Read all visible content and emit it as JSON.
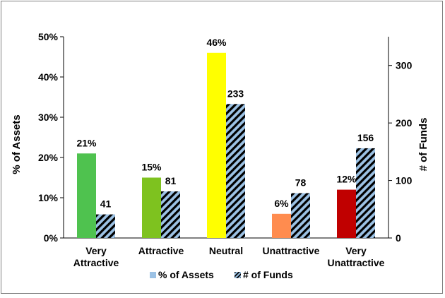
{
  "chart_data": {
    "type": "bar",
    "categories": [
      [
        "Very",
        "Attractive"
      ],
      [
        "Attractive"
      ],
      [
        "Neutral"
      ],
      [
        "Unattractive"
      ],
      [
        "Very",
        "Unattractive"
      ]
    ],
    "series": [
      {
        "name": "% of Assets",
        "axis": "left",
        "values": [
          21,
          15,
          46,
          6,
          12
        ],
        "data_labels": [
          "21%",
          "15%",
          "46%",
          "6%",
          "12%"
        ],
        "colors": [
          "#4fc24f",
          "#7ec21f",
          "#ffff00",
          "#ff8c4f",
          "#c00000"
        ]
      },
      {
        "name": "# of Funds",
        "axis": "right",
        "values": [
          41,
          81,
          233,
          78,
          156
        ],
        "data_labels": [
          "41",
          "81",
          "233",
          "78",
          "156"
        ],
        "pattern": "diagonal-stripes",
        "colors": [
          "#9cc2e5",
          "#000000"
        ]
      }
    ],
    "y_left": {
      "label": "% of Assets",
      "ylim": [
        0,
        50
      ],
      "ticks": [
        0,
        10,
        20,
        30,
        40,
        50
      ],
      "tick_labels": [
        "0%",
        "10%",
        "20%",
        "30%",
        "40%",
        "50%"
      ]
    },
    "y_right": {
      "label": "# of Funds",
      "ylim": [
        0,
        350
      ],
      "ticks": [
        0,
        100,
        200,
        300
      ],
      "tick_labels": [
        "0",
        "100",
        "200",
        "300"
      ]
    },
    "legend": {
      "placement": "bottom",
      "entries": [
        "% of Assets",
        "# of Funds"
      ]
    },
    "grid": false,
    "title": ""
  }
}
